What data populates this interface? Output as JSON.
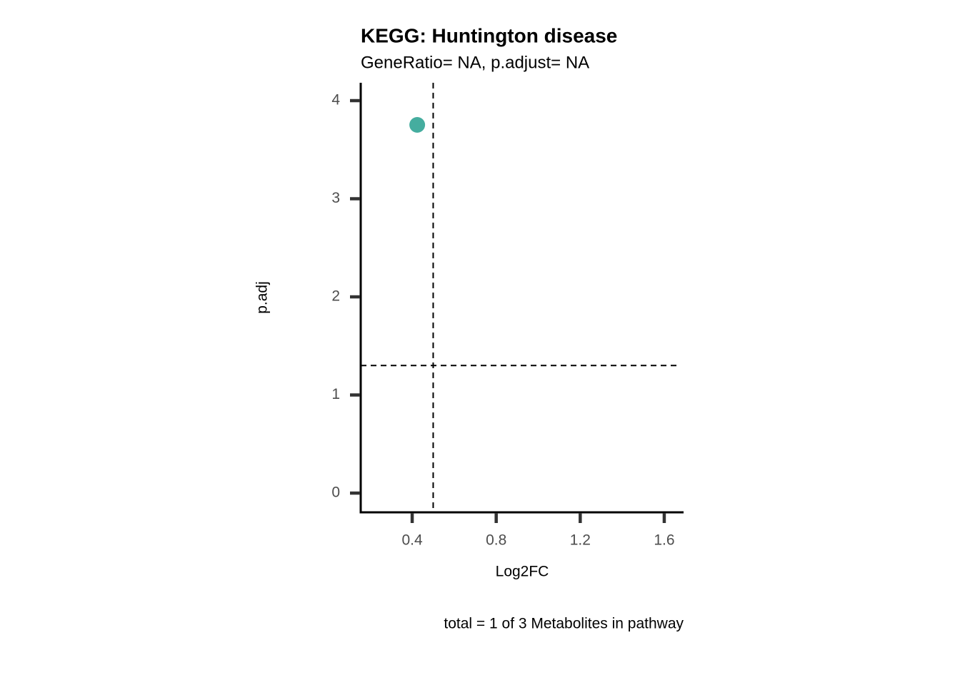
{
  "chart_data": {
    "type": "scatter",
    "title": "KEGG: Huntington disease",
    "subtitle": "GeneRatio= NA, p.adjust= NA",
    "x_label": "Log2FC",
    "y_label": "p.adj",
    "caption": "total = 1 of 3 Metabolites in pathway",
    "series": [
      {
        "color": "#45ad9f",
        "x": [
          0.424
        ],
        "values": [
          3.753
        ]
      }
    ],
    "vline": 0.5,
    "hline": 1.3,
    "xlim": [
      0.155,
      1.692
    ],
    "ylim": [
      -0.196,
      4.182
    ],
    "xticks": [
      0.4,
      0.8,
      1.2,
      1.6
    ],
    "yticks": [
      0,
      1,
      2,
      3,
      4
    ]
  }
}
